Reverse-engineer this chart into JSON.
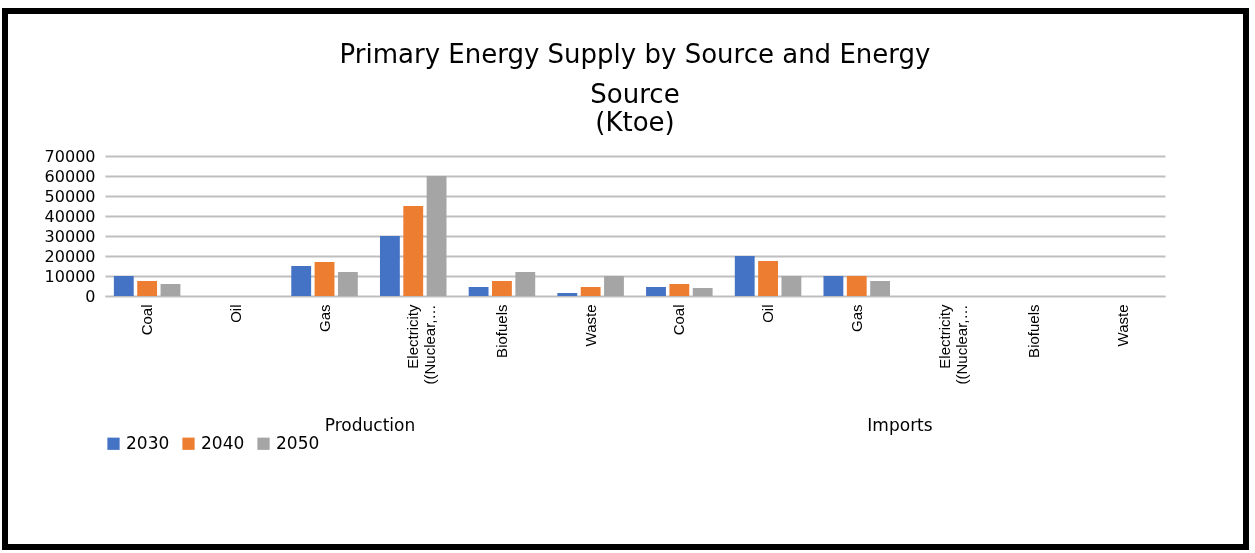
{
  "chart_data": {
    "type": "bar",
    "title": "Primary Energy Supply by Source and Energy Source",
    "subtitle": "(Ktoe)",
    "categories": [
      "Coal",
      "Oil",
      "Gas",
      "Electricity ((Nuclear,…",
      "Biofuels",
      "Waste",
      "Coal",
      "Oil",
      "Gas",
      "Electricity ((Nuclear,…",
      "Biofuels",
      "Waste"
    ],
    "series": [
      {
        "name": "2030",
        "color": "#4472c4",
        "values": [
          10000,
          0,
          15000,
          30000,
          4500,
          1500,
          4500,
          20000,
          10000,
          0,
          0,
          0
        ]
      },
      {
        "name": "2040",
        "color": "#ed7d31",
        "values": [
          7500,
          0,
          17000,
          45000,
          7500,
          4500,
          6000,
          17500,
          10000,
          0,
          0,
          0
        ]
      },
      {
        "name": "2050",
        "color": "#a5a5a5",
        "values": [
          6000,
          0,
          12000,
          60000,
          12000,
          10000,
          4000,
          10000,
          7500,
          0,
          0,
          0
        ]
      }
    ],
    "annotations": [
      "Production",
      "Imports"
    ],
    "ylim": [
      0,
      70000
    ],
    "yticks": [
      0,
      10000,
      20000,
      30000,
      40000,
      50000,
      60000,
      70000
    ],
    "grid": "y",
    "legend": "bottom"
  }
}
